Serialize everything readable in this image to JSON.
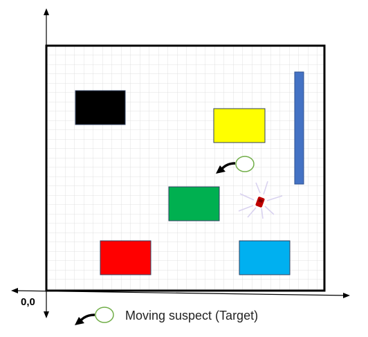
{
  "origin_label": "0,0",
  "legend": {
    "label": "Moving suspect (Target)",
    "icon": "moving-suspect-icon"
  },
  "obstacles": [
    {
      "name": "black-obstacle",
      "color": "#000000"
    },
    {
      "name": "yellow-obstacle",
      "color": "#ffff00"
    },
    {
      "name": "blue-wall",
      "color": "#4472c4"
    },
    {
      "name": "green-obstacle",
      "color": "#00b050"
    },
    {
      "name": "red-obstacle",
      "color": "#ff0000"
    },
    {
      "name": "cyan-obstacle",
      "color": "#00b0f0"
    }
  ],
  "grid_color": "#d9d9d9",
  "target_color": "#70ad47",
  "drone_color": "#c00000"
}
